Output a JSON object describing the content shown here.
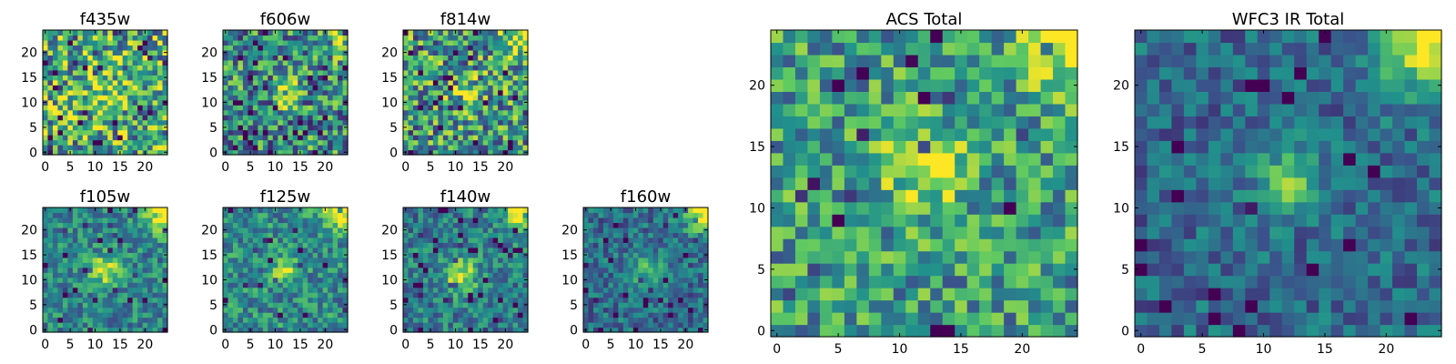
{
  "figure": {
    "colormap": "viridis",
    "colors": [
      "#440154",
      "#3b528b",
      "#21918c",
      "#5ec962",
      "#fde725"
    ]
  },
  "chart_data": [
    {
      "type": "heatmap",
      "title": "f435w",
      "xlim": [
        0,
        24
      ],
      "ylim": [
        0,
        24
      ],
      "xticks": [
        0,
        5,
        10,
        15,
        20
      ],
      "yticks": [
        0,
        5,
        10,
        15,
        20
      ],
      "seed": 11,
      "noise": 0.42,
      "bias": 0.62,
      "peak": {
        "x": 12,
        "y": 12,
        "amp": 0.18,
        "sigma": 3.0
      },
      "corner": 0.0,
      "dips": 0.1
    },
    {
      "type": "heatmap",
      "title": "f606w",
      "xlim": [
        0,
        24
      ],
      "ylim": [
        0,
        24
      ],
      "xticks": [
        0,
        5,
        10,
        15,
        20
      ],
      "yticks": [
        0,
        5,
        10,
        15,
        20
      ],
      "seed": 23,
      "noise": 0.38,
      "bias": 0.5,
      "peak": {
        "x": 12,
        "y": 12,
        "amp": 0.45,
        "sigma": 1.8
      },
      "corner": 0.35,
      "dips": 0.08
    },
    {
      "type": "heatmap",
      "title": "f814w",
      "xlim": [
        0,
        24
      ],
      "ylim": [
        0,
        24
      ],
      "xticks": [
        0,
        5,
        10,
        15,
        20
      ],
      "yticks": [
        0,
        5,
        10,
        15,
        20
      ],
      "seed": 37,
      "noise": 0.4,
      "bias": 0.55,
      "peak": {
        "x": 12,
        "y": 12,
        "amp": 0.35,
        "sigma": 2.0
      },
      "corner": 0.45,
      "dips": 0.08
    },
    {
      "type": "heatmap",
      "title": "f105w",
      "xlim": [
        0,
        24
      ],
      "ylim": [
        0,
        24
      ],
      "xticks": [
        0,
        5,
        10,
        15,
        20
      ],
      "yticks": [
        0,
        5,
        10,
        15,
        20
      ],
      "seed": 41,
      "noise": 0.22,
      "bias": 0.45,
      "peak": {
        "x": 12,
        "y": 12,
        "amp": 0.45,
        "sigma": 2.2
      },
      "corner": 0.65,
      "dips": 0.05
    },
    {
      "type": "heatmap",
      "title": "f125w",
      "xlim": [
        0,
        24
      ],
      "ylim": [
        0,
        24
      ],
      "xticks": [
        0,
        5,
        10,
        15,
        20
      ],
      "yticks": [
        0,
        5,
        10,
        15,
        20
      ],
      "seed": 53,
      "noise": 0.24,
      "bias": 0.48,
      "peak": {
        "x": 12,
        "y": 12,
        "amp": 0.5,
        "sigma": 1.6
      },
      "corner": 0.65,
      "dips": 0.05
    },
    {
      "type": "heatmap",
      "title": "f140w",
      "xlim": [
        0,
        24
      ],
      "ylim": [
        0,
        24
      ],
      "xticks": [
        0,
        5,
        10,
        15,
        20
      ],
      "yticks": [
        0,
        5,
        10,
        15,
        20
      ],
      "seed": 67,
      "noise": 0.22,
      "bias": 0.42,
      "peak": {
        "x": 11,
        "y": 11,
        "amp": 0.5,
        "sigma": 2.4
      },
      "corner": 0.65,
      "dips": 0.05
    },
    {
      "type": "heatmap",
      "title": "f160w",
      "xlim": [
        0,
        24
      ],
      "ylim": [
        0,
        24
      ],
      "xticks": [
        0,
        5,
        10,
        15,
        20
      ],
      "yticks": [
        0,
        5,
        10,
        15,
        20
      ],
      "seed": 79,
      "noise": 0.2,
      "bias": 0.36,
      "peak": {
        "x": 12,
        "y": 12,
        "amp": 0.3,
        "sigma": 2.6
      },
      "corner": 0.7,
      "dips": 0.05
    },
    {
      "type": "heatmap",
      "title": "ACS Total",
      "xlim": [
        0,
        24
      ],
      "ylim": [
        0,
        24
      ],
      "xticks": [
        0,
        5,
        10,
        15,
        20
      ],
      "yticks": [
        0,
        5,
        10,
        15,
        20
      ],
      "seed": 97,
      "noise": 0.3,
      "bias": 0.55,
      "peak": {
        "x": 12,
        "y": 13,
        "amp": 0.35,
        "sigma": 2.4
      },
      "corner": 0.4,
      "dips": 0.04
    },
    {
      "type": "heatmap",
      "title": "WFC3 IR Total",
      "xlim": [
        0,
        24
      ],
      "ylim": [
        0,
        24
      ],
      "xticks": [
        0,
        5,
        10,
        15,
        20
      ],
      "yticks": [
        0,
        5,
        10,
        15,
        20
      ],
      "seed": 113,
      "noise": 0.18,
      "bias": 0.34,
      "peak": {
        "x": 12,
        "y": 12,
        "amp": 0.5,
        "sigma": 1.8
      },
      "corner": 0.75,
      "dips": 0.04
    }
  ]
}
